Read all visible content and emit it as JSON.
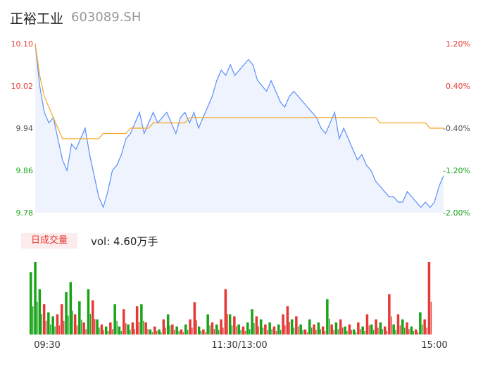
{
  "header": {
    "name": "正裕工业",
    "code": "603089.SH"
  },
  "volume_panel": {
    "badge": "日成交量",
    "label": "vol: 4.60万手"
  },
  "colors": {
    "price": "#5b8ff9",
    "avg": "#f5a623",
    "up": "#e53935",
    "down": "#19a319",
    "neutral": "#555555"
  },
  "chart_data": [
    {
      "type": "line",
      "series": [
        {
          "values": [
            10.1,
            10.02,
            9.97,
            9.95,
            9.96,
            9.92,
            9.88,
            9.86,
            9.91,
            9.9,
            9.92,
            9.94,
            9.89,
            9.85,
            9.81,
            9.79,
            9.82,
            9.86,
            9.87,
            9.89,
            9.92,
            9.93,
            9.95,
            9.97,
            9.93,
            9.95,
            9.97,
            9.95,
            9.96,
            9.97,
            9.95,
            9.93,
            9.96,
            9.97,
            9.95,
            9.97,
            9.94,
            9.96,
            9.98,
            10.0,
            10.03,
            10.05,
            10.04,
            10.06,
            10.04,
            10.05,
            10.06,
            10.07,
            10.06,
            10.03,
            10.02,
            10.01,
            10.03,
            10.01,
            9.99,
            9.98,
            10.0,
            10.01,
            10.0,
            9.99,
            9.98,
            9.97,
            9.96,
            9.94,
            9.93,
            9.95,
            9.97,
            9.92,
            9.94,
            9.92,
            9.9,
            9.88,
            9.89,
            9.87,
            9.86,
            9.84,
            9.83,
            9.82,
            9.81,
            9.81,
            9.8,
            9.8,
            9.82,
            9.81,
            9.8,
            9.79,
            9.8,
            9.79,
            9.8,
            9.83,
            9.85
          ]
        },
        {
          "values": [
            10.1,
            10.04,
            10.0,
            9.98,
            9.96,
            9.94,
            9.92,
            9.92,
            9.92,
            9.92,
            9.92,
            9.92,
            9.92,
            9.92,
            9.92,
            9.93,
            9.93,
            9.93,
            9.93,
            9.93,
            9.93,
            9.94,
            9.94,
            9.94,
            9.94,
            9.94,
            9.95,
            9.95,
            9.95,
            9.95,
            9.95,
            9.95,
            9.95,
            9.95,
            9.96,
            9.96,
            9.96,
            9.96,
            9.96,
            9.96,
            9.96,
            9.96,
            9.96,
            9.96,
            9.96,
            9.96,
            9.96,
            9.96,
            9.96,
            9.96,
            9.96,
            9.96,
            9.96,
            9.96,
            9.96,
            9.96,
            9.96,
            9.96,
            9.96,
            9.96,
            9.96,
            9.96,
            9.96,
            9.96,
            9.96,
            9.96,
            9.96,
            9.96,
            9.96,
            9.96,
            9.96,
            9.96,
            9.96,
            9.96,
            9.96,
            9.96,
            9.95,
            9.95,
            9.95,
            9.95,
            9.95,
            9.95,
            9.95,
            9.95,
            9.95,
            9.95,
            9.95,
            9.94,
            9.94,
            9.94,
            9.94
          ]
        }
      ],
      "ylim": [
        9.78,
        10.1
      ],
      "yticks_left": [
        "10.10",
        "10.02",
        "9.94",
        "9.86",
        "9.78"
      ],
      "yticks_right": [
        "1.20%",
        "0.40%",
        "-0.40%",
        "-1.20%",
        "-2.00%"
      ]
    },
    {
      "type": "bar",
      "values": [
        0.62,
        0.72,
        0.45,
        0.3,
        0.22,
        0.18,
        0.2,
        0.3,
        0.42,
        0.52,
        0.2,
        0.33,
        0.12,
        0.45,
        0.34,
        0.15,
        0.1,
        0.08,
        0.12,
        0.3,
        0.08,
        0.25,
        0.1,
        0.12,
        0.28,
        0.3,
        0.12,
        0.05,
        0.08,
        0.05,
        0.15,
        0.2,
        0.1,
        0.08,
        0.05,
        0.1,
        0.15,
        0.32,
        0.08,
        0.05,
        0.2,
        0.12,
        0.1,
        0.15,
        0.45,
        0.2,
        0.18,
        0.1,
        0.08,
        0.12,
        0.25,
        0.18,
        0.15,
        0.1,
        0.12,
        0.08,
        0.1,
        0.2,
        0.28,
        0.15,
        0.18,
        0.1,
        0.05,
        0.15,
        0.1,
        0.12,
        0.08,
        0.35,
        0.1,
        0.12,
        0.15,
        0.08,
        0.1,
        0.05,
        0.12,
        0.08,
        0.2,
        0.1,
        0.15,
        0.12,
        0.08,
        0.4,
        0.1,
        0.2,
        0.15,
        0.12,
        0.08,
        0.05,
        0.22,
        0.15,
        0.72
      ],
      "directions": [
        "d",
        "d",
        "d",
        "u",
        "d",
        "d",
        "u",
        "u",
        "d",
        "d",
        "u",
        "d",
        "u",
        "d",
        "u",
        "d",
        "u",
        "d",
        "u",
        "d",
        "d",
        "u",
        "d",
        "u",
        "u",
        "d",
        "u",
        "d",
        "u",
        "d",
        "u",
        "d",
        "u",
        "d",
        "u",
        "d",
        "u",
        "u",
        "d",
        "u",
        "d",
        "u",
        "d",
        "u",
        "u",
        "d",
        "u",
        "d",
        "u",
        "d",
        "d",
        "u",
        "d",
        "u",
        "d",
        "u",
        "d",
        "u",
        "u",
        "d",
        "u",
        "d",
        "u",
        "d",
        "u",
        "d",
        "u",
        "d",
        "u",
        "d",
        "u",
        "d",
        "u",
        "d",
        "u",
        "d",
        "u",
        "d",
        "u",
        "d",
        "u",
        "u",
        "d",
        "u",
        "d",
        "u",
        "d",
        "u",
        "d",
        "u",
        "u"
      ],
      "xticks": [
        "09:30",
        "11:30/13:00",
        "15:00"
      ]
    }
  ]
}
